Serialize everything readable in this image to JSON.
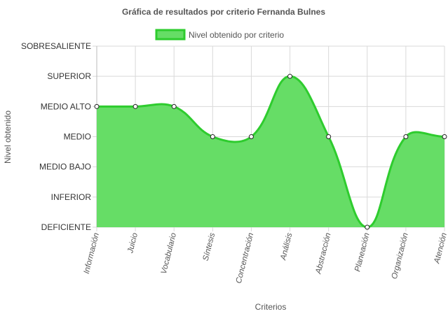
{
  "chart_data": {
    "type": "area",
    "title": "Gráfica de resultados por criterio Fernanda Bulnes",
    "xlabel": "Criterios",
    "ylabel": "Nivel obtenido",
    "y_levels": [
      "DEFICIENTE",
      "INFERIOR",
      "MEDIO BAJO",
      "MEDIO",
      "MEDIO ALTO",
      "SUPERIOR",
      "SOBRESALIENTE"
    ],
    "ylim": [
      0,
      6
    ],
    "categories": [
      "Información",
      "Juicio",
      "Vocabulario",
      "Síntesis",
      "Concentración",
      "Análisis",
      "Abstracción",
      "Planeación",
      "Organización",
      "Atención"
    ],
    "series": [
      {
        "name": "Nivel obtenido por criterio",
        "values": [
          4,
          4,
          4,
          3,
          3,
          5,
          3,
          0,
          3,
          3
        ],
        "color": "#2ecc2e",
        "fill": "#66dd66"
      }
    ],
    "legend_position": "top",
    "grid": true
  }
}
